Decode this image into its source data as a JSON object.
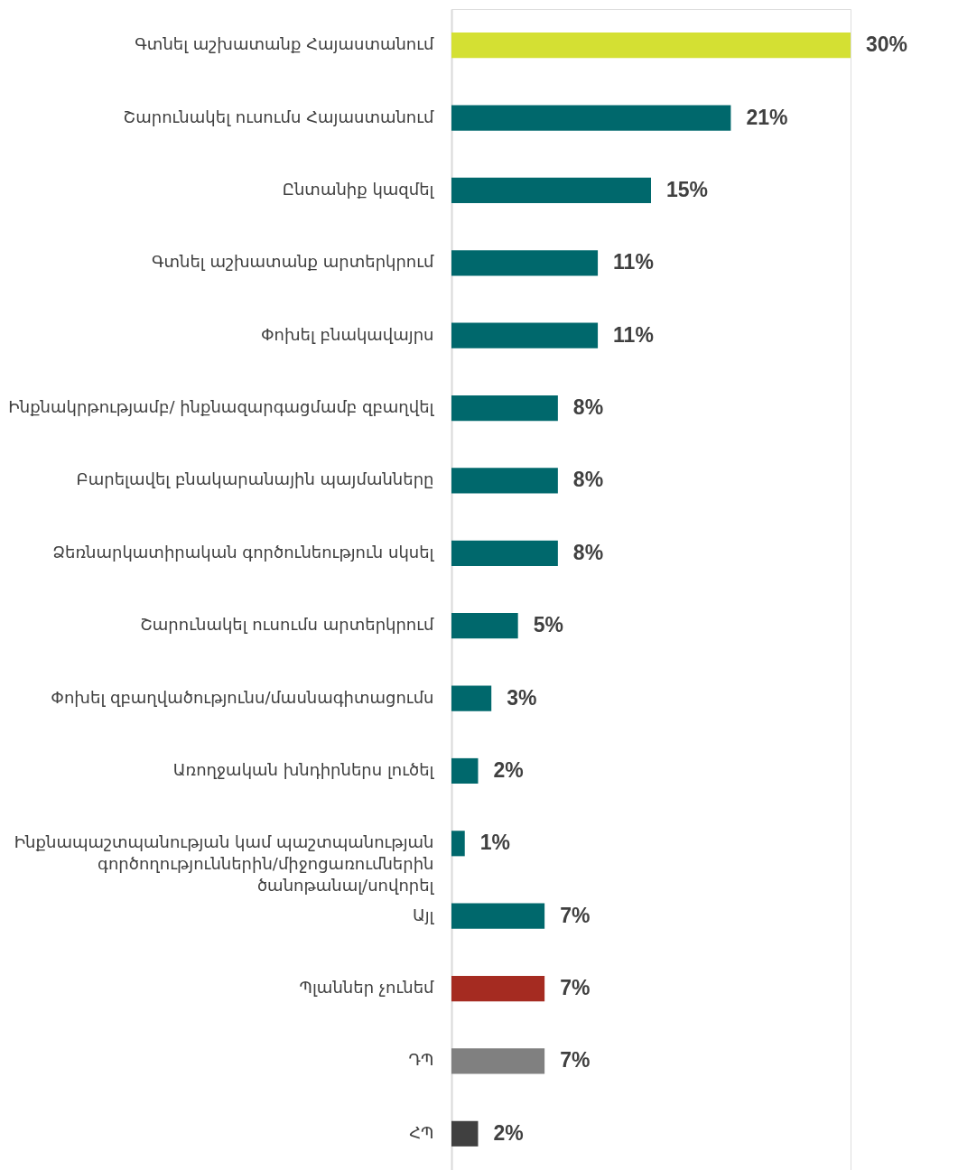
{
  "chart_data": {
    "type": "bar",
    "orientation": "horizontal",
    "categories": [
      "Գտնել աշխատանք Հայաստանում",
      "Շարունակել ուսումս Հայաստանում",
      "Ընտանիք կազմել",
      "Գտնել աշխատանք արտերկրում",
      "Փոխել բնակավայրս",
      "Ինքնակրթությամբ/ ինքնազարգացմամբ զբաղվել",
      "Բարելավել բնակարանային պայմանները",
      "Ձեռնարկատիրական գործունեություն սկսել",
      "Շարունակել ուսումս արտերկրում",
      "Փոխել զբաղվածությունս/մասնագիտացումս",
      "Առողջական խնդիրներս լուծել",
      "Ինքնապաշտպանության կամ պաշտպանության գործողություններին/միջոցառումներին ծանոթանալ/սովորել",
      "Այլ",
      "Պլաններ չունեմ",
      "ԴՊ",
      "ՀՊ"
    ],
    "values": [
      30,
      21,
      15,
      11,
      11,
      8,
      8,
      8,
      5,
      3,
      2,
      1,
      7,
      7,
      7,
      2
    ],
    "colors": [
      "#d4e033",
      "#00686c",
      "#00686c",
      "#00686c",
      "#00686c",
      "#00686c",
      "#00686c",
      "#00686c",
      "#00686c",
      "#00686c",
      "#00686c",
      "#00686c",
      "#00686c",
      "#a52b21",
      "#808080",
      "#404040"
    ],
    "value_labels": [
      "30%",
      "21%",
      "15%",
      "11%",
      "11%",
      "8%",
      "8%",
      "8%",
      "5%",
      "3%",
      "2%",
      "1%",
      "7%",
      "7%",
      "7%",
      "2%"
    ]
  }
}
